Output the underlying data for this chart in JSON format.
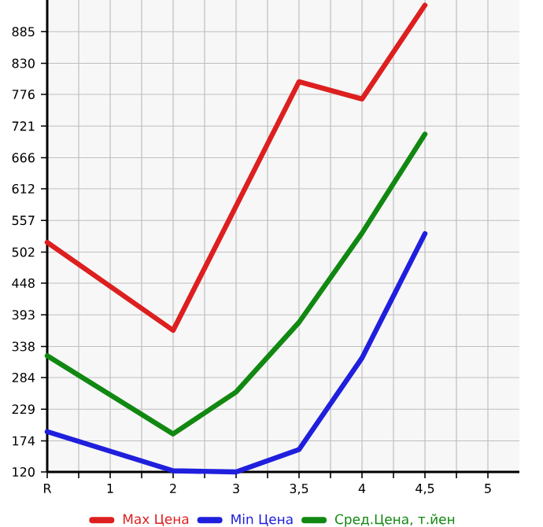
{
  "chart_data": {
    "type": "line",
    "categories": [
      "R",
      "1",
      "2",
      "3",
      "3,5",
      "4",
      "4,5",
      "5"
    ],
    "series": [
      {
        "name": "Max Цена",
        "color": "#dd1f1f",
        "values": [
          519,
          null,
          366,
          582,
          798,
          768,
          931,
          null
        ]
      },
      {
        "name": "Min Цена",
        "color": "#1f1fdd",
        "values": [
          190,
          null,
          122,
          120,
          159,
          318,
          534,
          null
        ]
      },
      {
        "name": "Сред.Цена, т.йен",
        "color": "#118811",
        "values": [
          322,
          null,
          186,
          259,
          380,
          535,
          707,
          null
        ]
      }
    ],
    "ylim": [
      120,
      940
    ],
    "yticks": [
      120,
      174,
      229,
      284,
      338,
      393,
      448,
      502,
      557,
      612,
      666,
      721,
      776,
      830,
      885
    ],
    "grid": true,
    "legend": "bottom",
    "marker": "none",
    "line_style": "solid"
  }
}
